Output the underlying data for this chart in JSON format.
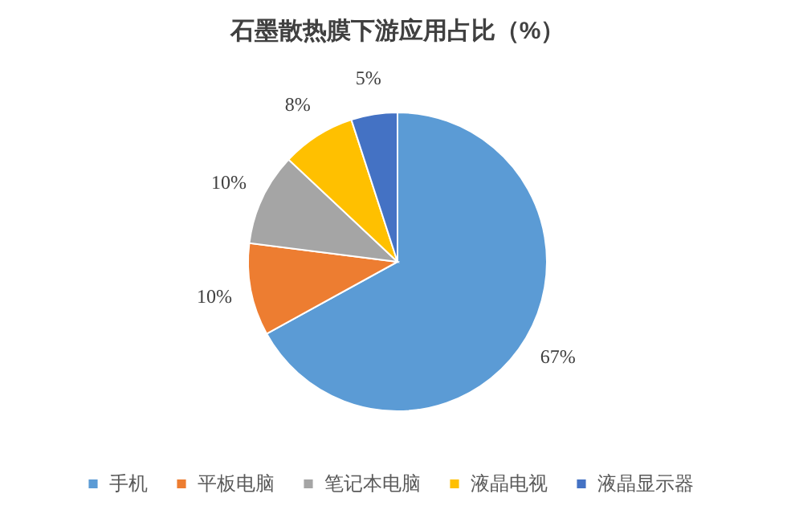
{
  "chart_data": {
    "type": "pie",
    "title": "石墨散热膜下游应用占比（%）",
    "categories": [
      "手机",
      "平板电脑",
      "笔记本电脑",
      "液晶电视",
      "液晶显示器"
    ],
    "values": [
      67,
      10,
      10,
      8,
      5
    ],
    "colors": [
      "#5b9bd5",
      "#ed7d31",
      "#a5a5a5",
      "#ffc000",
      "#4472c4"
    ],
    "value_labels": [
      "67%",
      "10%",
      "10%",
      "8%",
      "5%"
    ],
    "legend": "bottom"
  }
}
